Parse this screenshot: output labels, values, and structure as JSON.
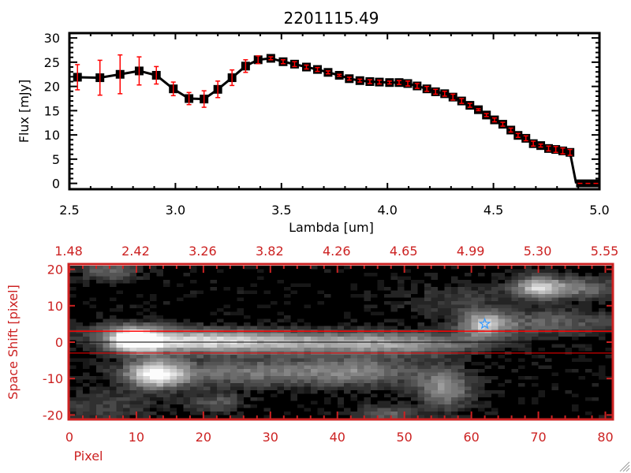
{
  "chart_data": [
    {
      "type": "line",
      "title": "2201115.49",
      "xlabel": "Lambda [um]",
      "ylabel": "Flux [mJy]",
      "xlim": [
        2.5,
        5.0
      ],
      "ylim": [
        -1.2,
        31
      ],
      "xticks": [
        "2.5",
        "3.0",
        "3.5",
        "4.0",
        "4.5",
        "5.0"
      ],
      "xtick_values": [
        2.5,
        3.0,
        3.5,
        4.0,
        4.5,
        5.0
      ],
      "yticks": [
        "0",
        "5",
        "10",
        "15",
        "20",
        "25",
        "30"
      ],
      "ytick_values": [
        0,
        5,
        10,
        15,
        20,
        25,
        30
      ],
      "colors": {
        "line": "#000000",
        "marker": "#000000",
        "error": "#ff0000"
      },
      "x": [
        2.538,
        2.644,
        2.739,
        2.829,
        2.91,
        2.99,
        3.064,
        3.135,
        3.2,
        3.267,
        3.331,
        3.39,
        3.45,
        3.508,
        3.562,
        3.618,
        3.67,
        3.72,
        3.773,
        3.82,
        3.87,
        3.917,
        3.962,
        4.01,
        4.055,
        4.096,
        4.14,
        4.186,
        4.227,
        4.27,
        4.309,
        4.35,
        4.389,
        4.429,
        4.467,
        4.505,
        4.544,
        4.582,
        4.616,
        4.653,
        4.688,
        4.723,
        4.76,
        4.794,
        4.827,
        4.861
      ],
      "y": [
        21.9,
        21.8,
        22.5,
        23.2,
        22.3,
        19.5,
        17.5,
        17.4,
        19.4,
        21.8,
        24.2,
        25.5,
        25.8,
        25.1,
        24.6,
        24.0,
        23.5,
        22.9,
        22.3,
        21.6,
        21.2,
        21.0,
        20.9,
        20.8,
        20.8,
        20.6,
        20.1,
        19.5,
        18.9,
        18.5,
        17.8,
        17.0,
        16.1,
        15.2,
        14.1,
        13.1,
        12.2,
        11.0,
        9.9,
        9.3,
        8.2,
        7.8,
        7.2,
        7.0,
        6.7,
        6.4
      ],
      "yerr": [
        2.6,
        3.6,
        4.0,
        2.9,
        1.8,
        1.4,
        1.25,
        1.7,
        1.7,
        1.6,
        1.3,
        0.8,
        0.3,
        0.4,
        0.5,
        0.4,
        0.4,
        0.3,
        0.2,
        0.3,
        0.3,
        0.4,
        0.4,
        0.3,
        0.4,
        0.5,
        0.5,
        0.5,
        0.5,
        0.5,
        0.6,
        0.5,
        0.4,
        0.2,
        0.3,
        0.4,
        0.4,
        0.4,
        0.4,
        0.5,
        0.5,
        0.3,
        0.5,
        0.6,
        0.6,
        0.6
      ],
      "tail": {
        "x": [
          4.89,
          5.0
        ],
        "y": [
          0,
          0
        ]
      }
    },
    {
      "type": "heatmap",
      "xlabel": "Pixel",
      "ylabel": "Space Shift [pixel]",
      "xlim": [
        0,
        81
      ],
      "ylim": [
        -21,
        21
      ],
      "xticks": [
        "0",
        "10",
        "20",
        "30",
        "40",
        "50",
        "60",
        "70",
        "80"
      ],
      "xtick_values": [
        0,
        10,
        20,
        30,
        40,
        50,
        60,
        70,
        80
      ],
      "yticks": [
        "-20",
        "-10",
        "0",
        "10",
        "20"
      ],
      "ytick_values": [
        -20,
        -10,
        0,
        10,
        20
      ],
      "top_ticks": [
        "1.48",
        "2.42",
        "3.26",
        "3.82",
        "4.26",
        "4.65",
        "4.99",
        "5.30",
        "5.55"
      ],
      "colors": {
        "frame": "#cc2222",
        "aperture": "#ff0000",
        "center": "#000000",
        "marker": "#3399ff"
      },
      "aperture_limits": [
        -3,
        3
      ],
      "center_line": 0,
      "source_marker": {
        "x": 62,
        "y": 5,
        "symbol": "star"
      },
      "sources": [
        {
          "x": 10,
          "y": 0.5,
          "sx": 2.5,
          "sy": 2.2,
          "amp": 1.0
        },
        {
          "x": 18,
          "y": 0.3,
          "sx": 8,
          "sy": 2.2,
          "amp": 0.62
        },
        {
          "x": 35,
          "y": 0,
          "sx": 12,
          "sy": 2.2,
          "amp": 0.55
        },
        {
          "x": 52,
          "y": -0.5,
          "sx": 8,
          "sy": 2.2,
          "amp": 0.35
        },
        {
          "x": 13,
          "y": -9,
          "sx": 3,
          "sy": 2.8,
          "amp": 0.85
        },
        {
          "x": 28,
          "y": -8.5,
          "sx": 12,
          "sy": 2.8,
          "amp": 0.4
        },
        {
          "x": 44,
          "y": -8,
          "sx": 6,
          "sy": 3,
          "amp": 0.3
        },
        {
          "x": 56,
          "y": -13,
          "sx": 3,
          "sy": 4,
          "amp": 0.48
        },
        {
          "x": 62,
          "y": 5,
          "sx": 2.5,
          "sy": 2.5,
          "amp": 0.62
        },
        {
          "x": 72,
          "y": 5.5,
          "sx": 8,
          "sy": 2.5,
          "amp": 0.32
        },
        {
          "x": 70,
          "y": 15.5,
          "sx": 2.5,
          "sy": 2.2,
          "amp": 0.62
        },
        {
          "x": 76,
          "y": 15,
          "sx": 5,
          "sy": 2.2,
          "amp": 0.38
        },
        {
          "x": 6,
          "y": 20,
          "sx": 3,
          "sy": 2,
          "amp": 0.35
        },
        {
          "x": 47,
          "y": -20,
          "sx": 3,
          "sy": 1.5,
          "amp": 0.35
        },
        {
          "x": 22,
          "y": -17,
          "sx": 3,
          "sy": 2,
          "amp": 0.28
        },
        {
          "x": 8,
          "y": 3,
          "sx": 6,
          "sy": 2,
          "amp": 0.2
        },
        {
          "x": 5,
          "y": -18,
          "sx": 6,
          "sy": 3,
          "amp": 0.2
        },
        {
          "x": 58,
          "y": 12,
          "sx": 6,
          "sy": 3,
          "amp": 0.18
        }
      ]
    }
  ]
}
